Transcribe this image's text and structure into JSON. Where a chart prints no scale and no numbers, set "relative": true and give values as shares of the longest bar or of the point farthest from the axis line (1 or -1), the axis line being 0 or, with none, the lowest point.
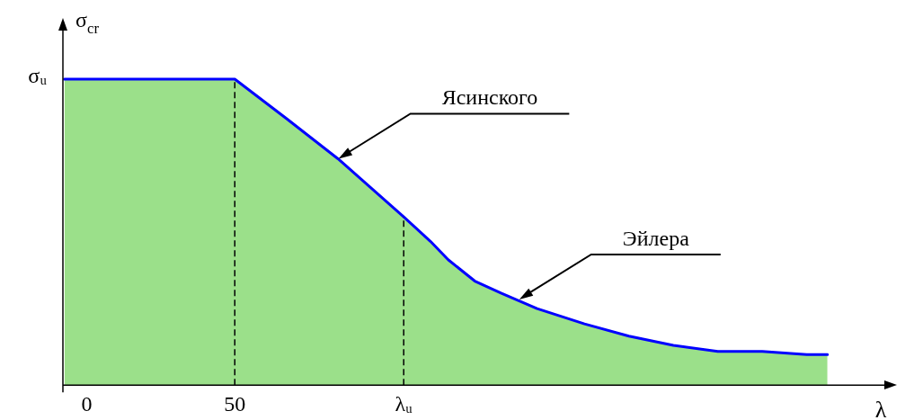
{
  "chart_data": {
    "type": "area",
    "relative": true,
    "xlabel": "λ",
    "ylabel": "σ$_{cr}$",
    "xlim": [
      -8,
      271
    ],
    "xticks": [
      0,
      50,
      {
        "value": 107,
        "label": "λᵤ"
      }
    ],
    "series": [
      {
        "color": "#9be08a",
        "x": [
          -7.5,
          -7.5,
          50,
          67.6,
          84.8,
          107,
          116,
          122,
          131,
          140,
          152,
          168,
          183,
          198,
          213,
          228,
          243,
          250,
          250
        ],
        "values": [
          0,
          1,
          1,
          0.87,
          0.74,
          0.55,
          0.47,
          0.41,
          0.34,
          0.3,
          0.25,
          0.2,
          0.16,
          0.13,
          0.11,
          0.11,
          0.1,
          0.1,
          0
        ]
      },
      {
        "type": "line",
        "color": "#0000ff",
        "x": [
          -7.5,
          50,
          67.6,
          84.8,
          107,
          116,
          122,
          131,
          140,
          152,
          168,
          183,
          198,
          213,
          228,
          243,
          250
        ],
        "values": [
          1,
          1,
          0.87,
          0.74,
          0.55,
          0.47,
          0.41,
          0.34,
          0.3,
          0.25,
          0.2,
          0.16,
          0.13,
          0.11,
          0.11,
          0.1,
          0.1
        ]
      }
    ],
    "ref_lines": [
      {
        "axis": "x",
        "value": 50,
        "line_style": "dashed"
      },
      {
        "axis": "x",
        "value": 107,
        "line_style": "dashed"
      }
    ],
    "annotations": [
      {
        "text": "σᵤ",
        "x": -7.5,
        "y": 1
      },
      {
        "text": "Ясинского",
        "x": 85,
        "y": 0.74
      },
      {
        "text": "Эйлера",
        "x": 146,
        "y": 0.28
      }
    ],
    "grid": false,
    "legend": false
  }
}
